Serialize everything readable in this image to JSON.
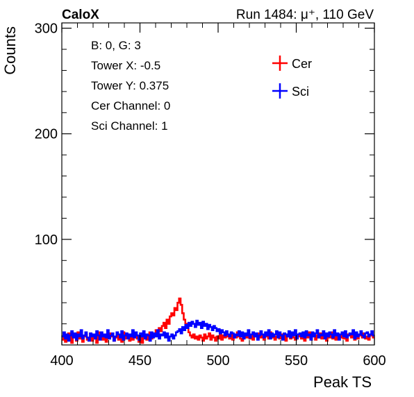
{
  "header": {
    "left_label": "CaloX",
    "right_label": "Run 1484:   μ⁺, 110 GeV"
  },
  "info_box": {
    "lines": [
      "B: 0, G: 3",
      "Tower X: -0.5",
      "Tower Y: 0.375",
      "Cer Channel: 0",
      "Sci Channel: 1"
    ]
  },
  "chart_data": {
    "type": "line",
    "title": "",
    "xlabel": "Peak TS",
    "ylabel": "Counts",
    "xlim": [
      400,
      600
    ],
    "ylim": [
      0,
      305
    ],
    "x_ticks": [
      400,
      450,
      500,
      550,
      600
    ],
    "y_ticks": [
      100,
      200,
      300
    ],
    "grid": false,
    "legend_position": "top-right",
    "bin_width": 1,
    "series": [
      {
        "name": "Cer",
        "color": "#ff0000",
        "x": [
          400,
          401,
          402,
          403,
          404,
          405,
          406,
          407,
          408,
          409,
          410,
          411,
          412,
          413,
          414,
          415,
          416,
          417,
          418,
          419,
          420,
          421,
          422,
          423,
          424,
          425,
          426,
          427,
          428,
          429,
          430,
          431,
          432,
          433,
          434,
          435,
          436,
          437,
          438,
          439,
          440,
          441,
          442,
          443,
          444,
          445,
          446,
          447,
          448,
          449,
          450,
          451,
          452,
          453,
          454,
          455,
          456,
          457,
          458,
          459,
          460,
          461,
          462,
          463,
          464,
          465,
          466,
          467,
          468,
          469,
          470,
          471,
          472,
          473,
          474,
          475,
          476,
          477,
          478,
          479,
          480,
          481,
          482,
          483,
          484,
          485,
          486,
          487,
          488,
          489,
          490,
          491,
          492,
          493,
          494,
          495,
          496,
          497,
          498,
          499,
          500,
          501,
          502,
          503,
          504,
          505,
          506,
          507,
          508,
          509,
          510,
          511,
          512,
          513,
          514,
          515,
          516,
          517,
          518,
          519,
          520,
          521,
          522,
          523,
          524,
          525,
          526,
          527,
          528,
          529,
          530,
          531,
          532,
          533,
          534,
          535,
          536,
          537,
          538,
          539,
          540,
          541,
          542,
          543,
          544,
          545,
          546,
          547,
          548,
          549,
          550,
          551,
          552,
          553,
          554,
          555,
          556,
          557,
          558,
          559,
          560,
          561,
          562,
          563,
          564,
          565,
          566,
          567,
          568,
          569,
          570,
          571,
          572,
          573,
          574,
          575,
          576,
          577,
          578,
          579,
          580,
          581,
          582,
          583,
          584,
          585,
          586,
          587,
          588,
          589,
          590,
          591,
          592,
          593,
          594,
          595,
          596,
          597,
          598,
          599
        ],
        "values": [
          5,
          9,
          3,
          6,
          11,
          8,
          2,
          10,
          7,
          4,
          12,
          6,
          9,
          3,
          8,
          10,
          5,
          7,
          11,
          4,
          9,
          6,
          2,
          8,
          12,
          7,
          5,
          10,
          3,
          9,
          6,
          11,
          8,
          4,
          7,
          10,
          5,
          9,
          3,
          12,
          6,
          8,
          10,
          4,
          7,
          5,
          11,
          9,
          6,
          3,
          8,
          2,
          10,
          7,
          5,
          9,
          12,
          6,
          8,
          11,
          14,
          10,
          16,
          13,
          18,
          21,
          16,
          24,
          20,
          27,
          30,
          28,
          35,
          33,
          40,
          44,
          38,
          30,
          24,
          20,
          16,
          12,
          9,
          7,
          10,
          6,
          8,
          5,
          9,
          7,
          4,
          10,
          6,
          8,
          11,
          5,
          9,
          7,
          4,
          8,
          6,
          10,
          5,
          9,
          7,
          11,
          8,
          6,
          10,
          5,
          9,
          7,
          12,
          8,
          6,
          4,
          10,
          8,
          7,
          12,
          6,
          9,
          5,
          10,
          8,
          6,
          11,
          7,
          9,
          5,
          8,
          10,
          6,
          12,
          7,
          9,
          5,
          8,
          11,
          6,
          10,
          7,
          9,
          4,
          8,
          12,
          6,
          10,
          7,
          5,
          9,
          8,
          11,
          6,
          10,
          4,
          9,
          7,
          12,
          6,
          8,
          10,
          5,
          9,
          7,
          11,
          6,
          8,
          10,
          4,
          9,
          7,
          12,
          6,
          8,
          5,
          10,
          9,
          7,
          11,
          6,
          8,
          4,
          10,
          9,
          7,
          12,
          5,
          8,
          6,
          10,
          9,
          7,
          11,
          6,
          8,
          5,
          10,
          9,
          7
        ]
      },
      {
        "name": "Sci",
        "color": "#0000ff",
        "x": [
          400,
          401,
          402,
          403,
          404,
          405,
          406,
          407,
          408,
          409,
          410,
          411,
          412,
          413,
          414,
          415,
          416,
          417,
          418,
          419,
          420,
          421,
          422,
          423,
          424,
          425,
          426,
          427,
          428,
          429,
          430,
          431,
          432,
          433,
          434,
          435,
          436,
          437,
          438,
          439,
          440,
          441,
          442,
          443,
          444,
          445,
          446,
          447,
          448,
          449,
          450,
          451,
          452,
          453,
          454,
          455,
          456,
          457,
          458,
          459,
          460,
          461,
          462,
          463,
          464,
          465,
          466,
          467,
          468,
          469,
          470,
          471,
          472,
          473,
          474,
          475,
          476,
          477,
          478,
          479,
          480,
          481,
          482,
          483,
          484,
          485,
          486,
          487,
          488,
          489,
          490,
          491,
          492,
          493,
          494,
          495,
          496,
          497,
          498,
          499,
          500,
          501,
          502,
          503,
          504,
          505,
          506,
          507,
          508,
          509,
          510,
          511,
          512,
          513,
          514,
          515,
          516,
          517,
          518,
          519,
          520,
          521,
          522,
          523,
          524,
          525,
          526,
          527,
          528,
          529,
          530,
          531,
          532,
          533,
          534,
          535,
          536,
          537,
          538,
          539,
          540,
          541,
          542,
          543,
          544,
          545,
          546,
          547,
          548,
          549,
          550,
          551,
          552,
          553,
          554,
          555,
          556,
          557,
          558,
          559,
          560,
          561,
          562,
          563,
          564,
          565,
          566,
          567,
          568,
          569,
          570,
          571,
          572,
          573,
          574,
          575,
          576,
          577,
          578,
          579,
          580,
          581,
          582,
          583,
          584,
          585,
          586,
          587,
          588,
          589,
          590,
          591,
          592,
          593,
          594,
          595,
          596,
          597,
          598,
          599
        ],
        "values": [
          8,
          12,
          6,
          10,
          4,
          9,
          13,
          7,
          11,
          5,
          10,
          8,
          14,
          6,
          9,
          12,
          7,
          4,
          11,
          8,
          10,
          6,
          13,
          9,
          5,
          12,
          8,
          10,
          7,
          14,
          6,
          9,
          11,
          4,
          8,
          12,
          10,
          7,
          13,
          5,
          9,
          11,
          6,
          10,
          8,
          14,
          7,
          12,
          9,
          5,
          11,
          8,
          13,
          6,
          10,
          9,
          4,
          12,
          7,
          11,
          8,
          14,
          6,
          10,
          9,
          12,
          7,
          11,
          4,
          8,
          10,
          6,
          9,
          12,
          13,
          15,
          11,
          17,
          14,
          19,
          16,
          21,
          18,
          22,
          20,
          17,
          23,
          19,
          21,
          16,
          22,
          18,
          20,
          15,
          19,
          17,
          14,
          18,
          16,
          13,
          15,
          11,
          14,
          12,
          9,
          13,
          10,
          8,
          12,
          11,
          7,
          10,
          9,
          13,
          8,
          12,
          6,
          11,
          9,
          14,
          7,
          10,
          12,
          8,
          11,
          5,
          9,
          13,
          10,
          7,
          12,
          9,
          14,
          6,
          11,
          8,
          10,
          13,
          7,
          12,
          9,
          5,
          11,
          10,
          8,
          13,
          7,
          12,
          9,
          14,
          6,
          10,
          11,
          8,
          12,
          7,
          13,
          9,
          10,
          5,
          12,
          8,
          11,
          14,
          7,
          10,
          9,
          13,
          6,
          11,
          8,
          12,
          10,
          7,
          14,
          9,
          11,
          5,
          10,
          12,
          8,
          13,
          7,
          9,
          11,
          10,
          14,
          6,
          12,
          8,
          10,
          13,
          9,
          7,
          11,
          12,
          8,
          10,
          13,
          9
        ]
      }
    ]
  }
}
